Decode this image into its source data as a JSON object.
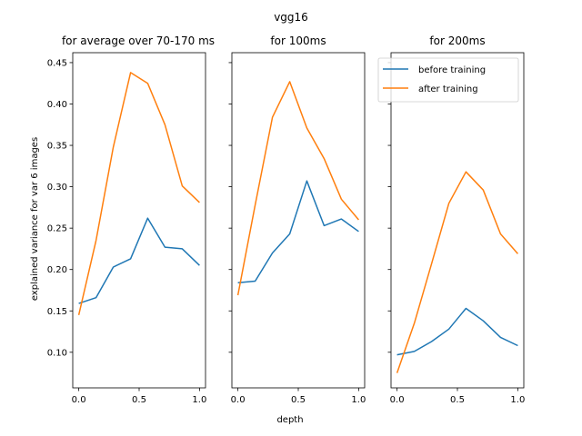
{
  "figure": {
    "suptitle": "vgg16",
    "xlabel": "depth",
    "ylabel": "explained variance for var 6 images"
  },
  "colors": {
    "before": "#1f77b4",
    "after": "#ff7f0e"
  },
  "legend": {
    "placement": "top-right",
    "entries": [
      "before training",
      "after training"
    ]
  },
  "chart_data": [
    {
      "type": "line",
      "title": "for average over 70-170 ms",
      "x": [
        0.0,
        0.143,
        0.286,
        0.429,
        0.571,
        0.714,
        0.857,
        1.0
      ],
      "series": [
        {
          "name": "before training",
          "values": [
            0.159,
            0.166,
            0.203,
            0.213,
            0.262,
            0.227,
            0.225,
            0.205
          ]
        },
        {
          "name": "after training",
          "values": [
            0.145,
            0.235,
            0.348,
            0.438,
            0.425,
            0.375,
            0.301,
            0.281
          ]
        }
      ],
      "xlim": [
        -0.05,
        1.05
      ],
      "ylim": [
        0.057,
        0.462
      ],
      "xticks": [
        "0.0",
        "0.5",
        "1.0"
      ],
      "yticks": [
        "0.10",
        "0.15",
        "0.20",
        "0.25",
        "0.30",
        "0.35",
        "0.40",
        "0.45"
      ]
    },
    {
      "type": "line",
      "title": "for 100ms",
      "x": [
        0.0,
        0.143,
        0.286,
        0.429,
        0.571,
        0.714,
        0.857,
        1.0
      ],
      "series": [
        {
          "name": "before training",
          "values": [
            0.184,
            0.186,
            0.22,
            0.243,
            0.307,
            0.253,
            0.261,
            0.246
          ]
        },
        {
          "name": "after training",
          "values": [
            0.169,
            0.278,
            0.384,
            0.427,
            0.371,
            0.334,
            0.285,
            0.26
          ]
        }
      ],
      "xlim": [
        -0.05,
        1.05
      ],
      "ylim": [
        0.057,
        0.462
      ],
      "xticks": [
        "0.0",
        "0.5",
        "1.0"
      ]
    },
    {
      "type": "line",
      "title": "for 200ms",
      "x": [
        0.0,
        0.143,
        0.286,
        0.429,
        0.571,
        0.714,
        0.857,
        1.0
      ],
      "series": [
        {
          "name": "before training",
          "values": [
            0.097,
            0.101,
            0.113,
            0.128,
            0.153,
            0.138,
            0.118,
            0.108
          ]
        },
        {
          "name": "after training",
          "values": [
            0.075,
            0.135,
            0.207,
            0.28,
            0.318,
            0.296,
            0.243,
            0.219
          ]
        }
      ],
      "xlim": [
        -0.05,
        1.05
      ],
      "ylim": [
        0.057,
        0.462
      ],
      "xticks": [
        "0.0",
        "0.5",
        "1.0"
      ],
      "legend": true
    }
  ]
}
